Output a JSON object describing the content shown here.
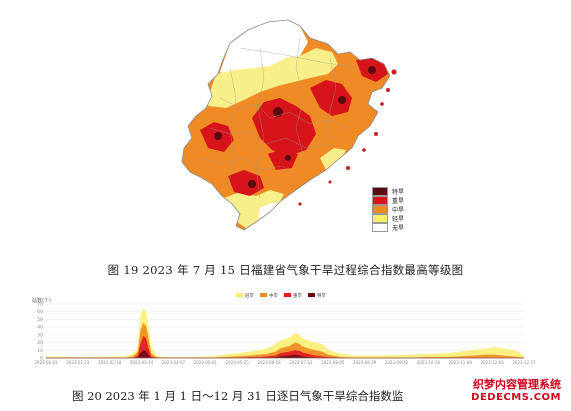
{
  "map": {
    "legend": [
      {
        "label": "特旱",
        "color": "#5a0a12"
      },
      {
        "label": "重旱",
        "color": "#d8141b"
      },
      {
        "label": "中旱",
        "color": "#f08a24"
      },
      {
        "label": "轻旱",
        "color": "#f9ee6b"
      },
      {
        "label": "无旱",
        "color": "#ffffff"
      }
    ],
    "fill_colors": {
      "none": "#ffffff",
      "light": "#f9ef8a",
      "moderate": "#f08a24",
      "severe": "#d8141b",
      "extreme": "#5a0a12",
      "border": "#b5b5b5"
    }
  },
  "figure19": {
    "caption": "图 19   2023 年 7 月 15 日福建省气象干旱过程综合指数最高等级图"
  },
  "chart_data": {
    "type": "area",
    "ylabel": "站数(个)",
    "ylim": [
      0,
      70
    ],
    "yticks": [
      0,
      10,
      20,
      30,
      40,
      50,
      60,
      70
    ],
    "legend_position": "top-center",
    "legend": [
      {
        "name": "轻旱",
        "color": "#f9ee6b"
      },
      {
        "name": "中旱",
        "color": "#f08a24"
      },
      {
        "name": "重旱",
        "color": "#e01b22"
      },
      {
        "name": "特旱",
        "color": "#6b0a14"
      }
    ],
    "x_ticks": [
      "2023-01-01",
      "2023-01-23",
      "2023-02-18",
      "2023-03-14",
      "2023-04-07",
      "2023-05-01",
      "2023-05-25",
      "2023-06-18",
      "2023-07-12",
      "2023-08-05",
      "2023-08-29",
      "2023-09-22",
      "2023-10-16",
      "2023-11-09",
      "2023-12-03",
      "2023-12-27"
    ],
    "x": [
      0,
      30,
      60,
      66,
      70,
      72,
      74,
      76,
      78,
      80,
      84,
      90,
      110,
      125,
      135,
      145,
      155,
      162,
      168,
      175,
      178,
      185,
      190,
      193,
      195,
      200,
      205,
      210,
      215,
      225,
      235,
      255,
      275,
      290,
      305,
      315,
      325,
      335,
      342,
      348,
      355,
      360,
      364
    ],
    "series": [
      {
        "name": "轻旱",
        "values": [
          2,
          1,
          2,
          5,
          12,
          55,
          64,
          60,
          40,
          15,
          3,
          1,
          1,
          2,
          4,
          6,
          8,
          10,
          12,
          18,
          22,
          26,
          32,
          30,
          26,
          22,
          20,
          18,
          10,
          5,
          3,
          3,
          4,
          5,
          6,
          8,
          10,
          12,
          14,
          12,
          10,
          8,
          2
        ]
      },
      {
        "name": "中旱",
        "values": [
          0,
          0,
          0,
          2,
          8,
          35,
          45,
          42,
          25,
          6,
          1,
          0,
          0,
          0,
          1,
          2,
          3,
          4,
          5,
          8,
          12,
          15,
          20,
          18,
          15,
          12,
          10,
          8,
          4,
          1,
          0,
          0,
          0,
          1,
          1,
          2,
          3,
          4,
          4,
          3,
          2,
          1,
          0
        ]
      },
      {
        "name": "重旱",
        "values": [
          0,
          0,
          0,
          0,
          3,
          18,
          28,
          26,
          12,
          2,
          0,
          0,
          0,
          0,
          0,
          0,
          1,
          1,
          2,
          3,
          6,
          8,
          10,
          9,
          7,
          5,
          3,
          2,
          1,
          0,
          0,
          0,
          0,
          0,
          0,
          0,
          0,
          0,
          0,
          0,
          0,
          0,
          0
        ]
      },
      {
        "name": "特旱",
        "values": [
          0,
          0,
          0,
          0,
          1,
          6,
          10,
          9,
          4,
          0,
          0,
          0,
          0,
          0,
          0,
          0,
          0,
          0,
          0,
          1,
          2,
          3,
          4,
          3,
          2,
          1,
          0,
          0,
          0,
          0,
          0,
          0,
          0,
          0,
          0,
          0,
          0,
          0,
          0,
          0,
          0,
          0,
          0
        ]
      }
    ]
  },
  "figure20": {
    "caption": "图 20   2023 年 1 月 1 日～12 月 31 日逐日气象干旱综合指数监"
  },
  "watermark": {
    "line1": "织梦内容管理系统",
    "line2": "DEDECMS.COM"
  }
}
